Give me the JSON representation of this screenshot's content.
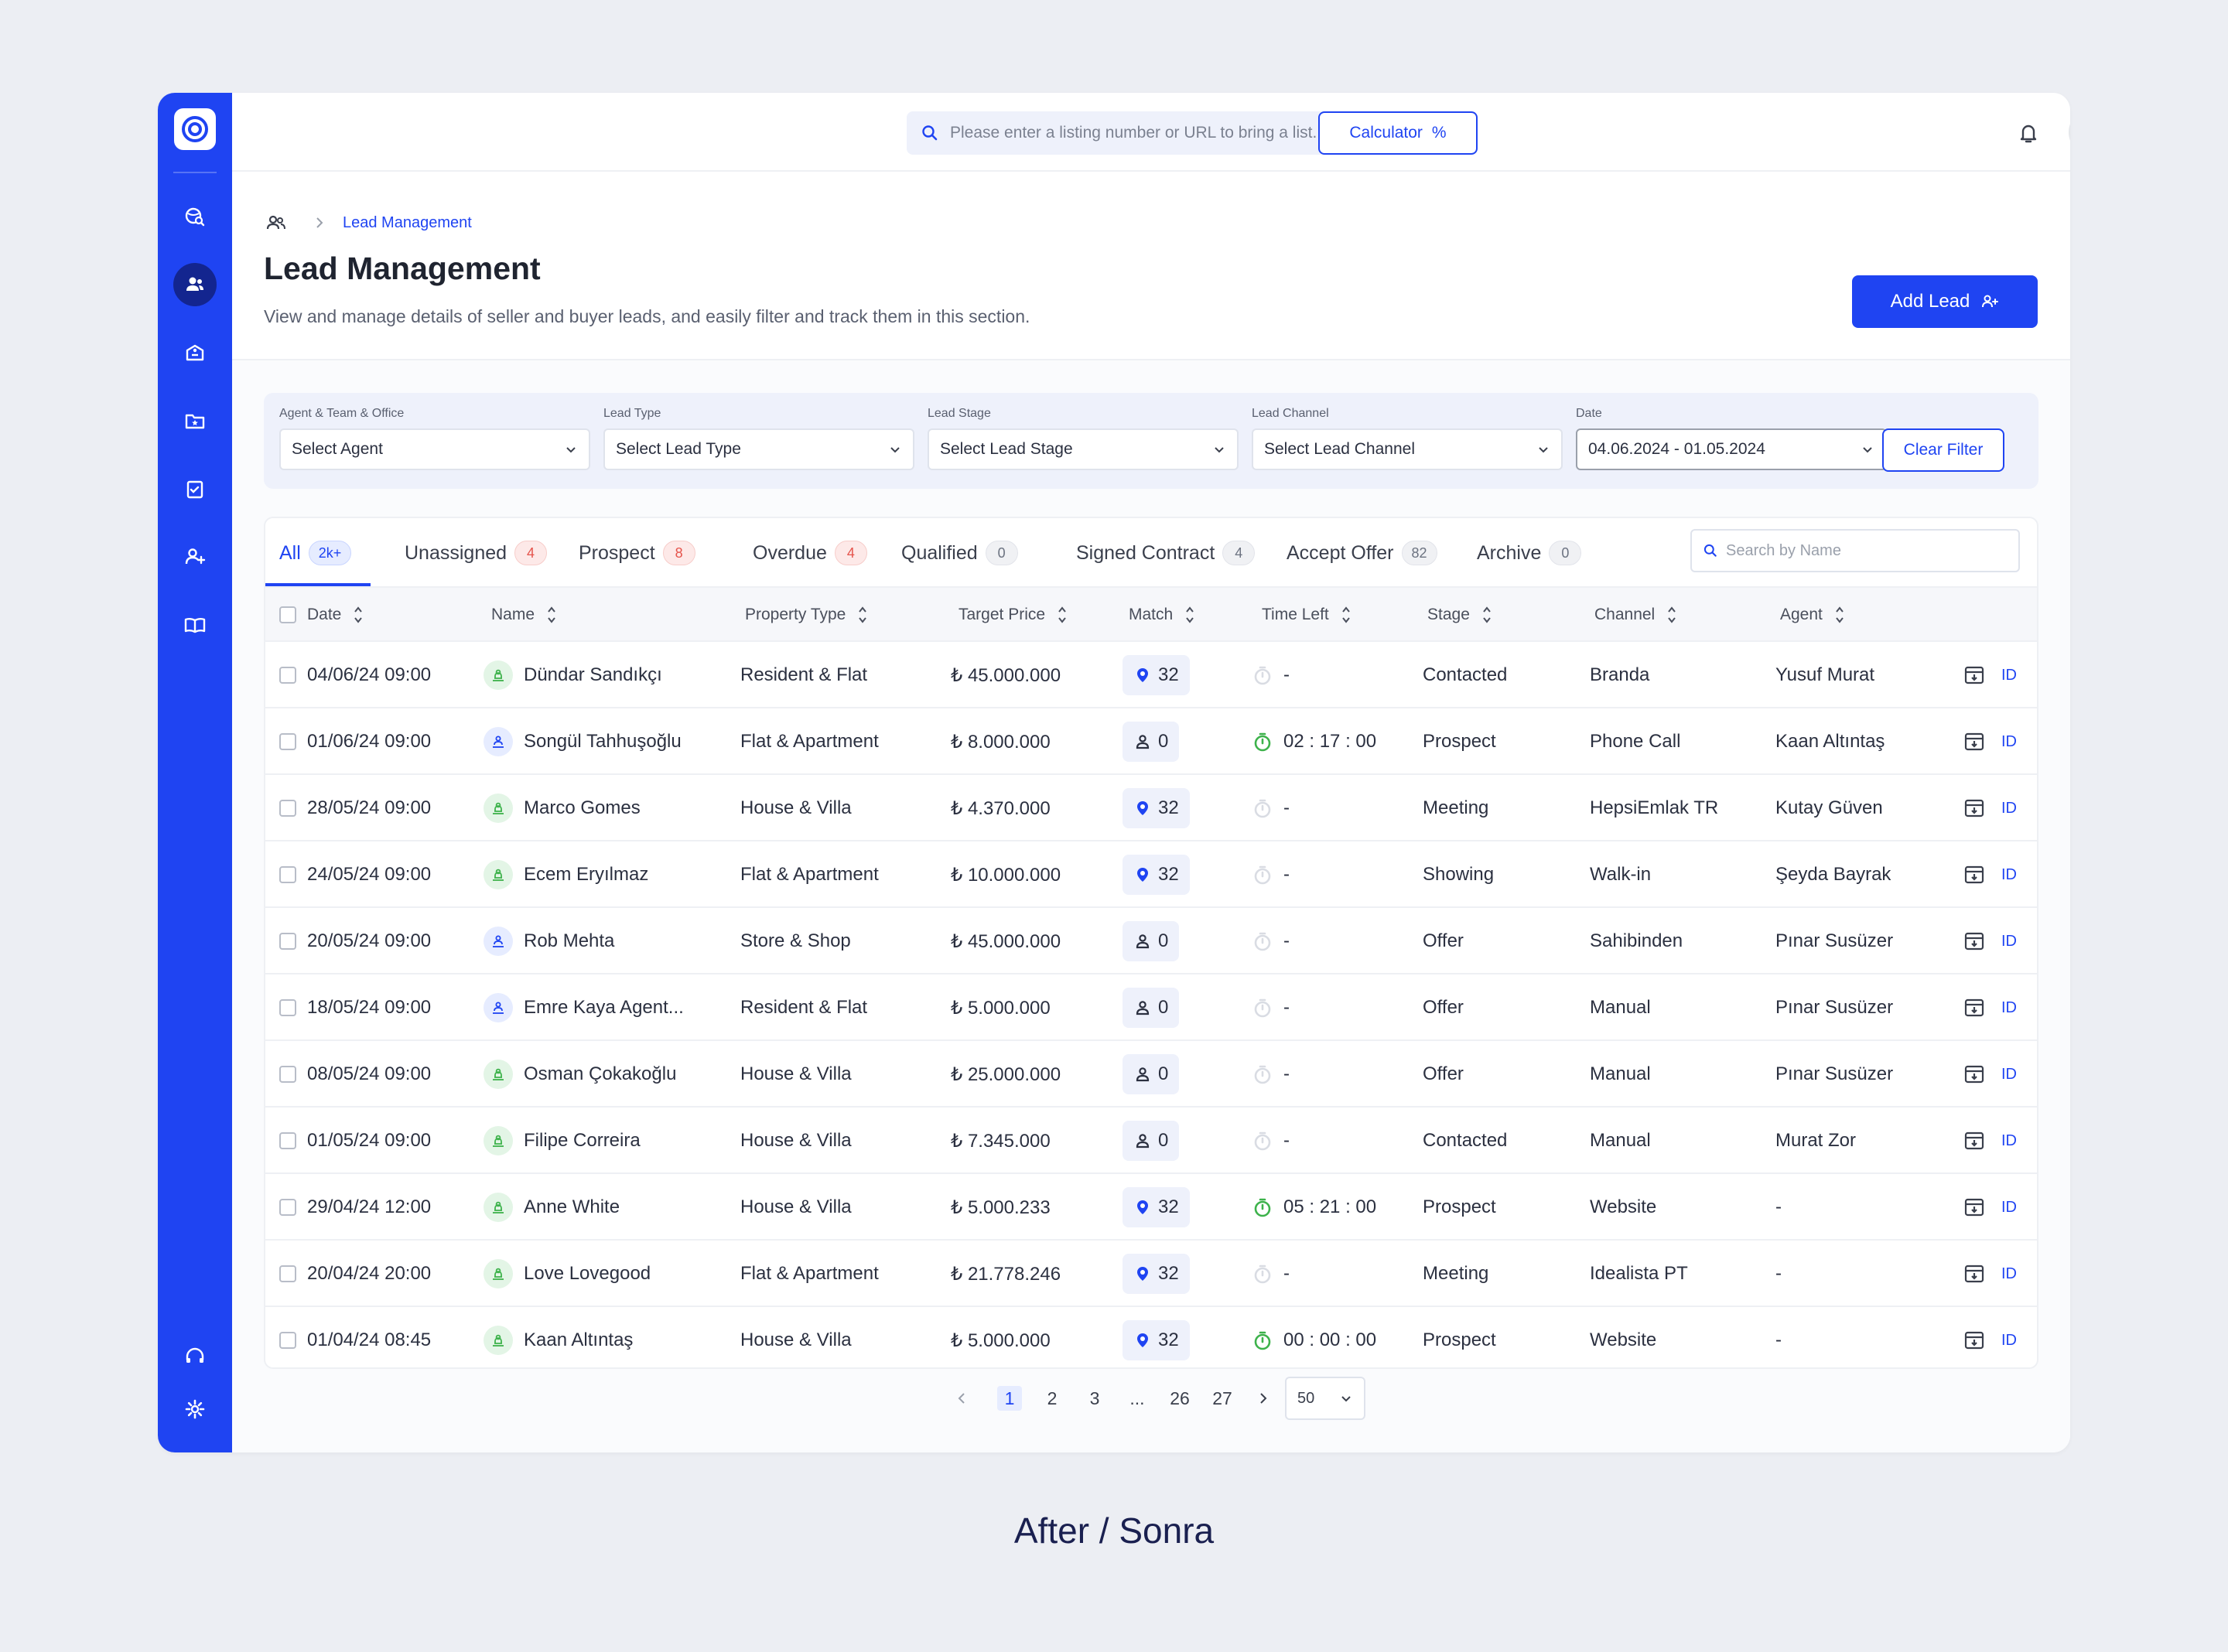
{
  "search": {
    "placeholder": "Please enter a listing number or URL to bring a list..."
  },
  "calculator": {
    "label": "Calculator",
    "icon": "%"
  },
  "breadcrumb": {
    "current": "Lead Management"
  },
  "page": {
    "title": "Lead Management",
    "description": "View and manage details of seller and buyer leads, and easily filter and track them in this section."
  },
  "add_lead": {
    "label": "Add Lead"
  },
  "filters": {
    "agent": {
      "label": "Agent & Team & Office",
      "value": "Select Agent"
    },
    "lead_type": {
      "label": "Lead Type",
      "value": "Select Lead Type"
    },
    "lead_stage": {
      "label": "Lead Stage",
      "value": "Select Lead Stage"
    },
    "lead_channel": {
      "label": "Lead Channel",
      "value": "Select Lead Channel"
    },
    "date": {
      "label": "Date",
      "value": "04.06.2024 - 01.05.2024"
    },
    "clear": "Clear Filter"
  },
  "tabs": [
    {
      "label": "All",
      "count": "2k+",
      "style": "blue"
    },
    {
      "label": "Unassigned",
      "count": "4",
      "style": "red"
    },
    {
      "label": "Prospect",
      "count": "8",
      "style": "red"
    },
    {
      "label": "Overdue",
      "count": "4",
      "style": "red"
    },
    {
      "label": "Qualified",
      "count": "0",
      "style": "gray"
    },
    {
      "label": "Signed Contract",
      "count": "4",
      "style": "gray"
    },
    {
      "label": "Accept Offer",
      "count": "82",
      "style": "gray"
    },
    {
      "label": "Archive",
      "count": "0",
      "style": "gray"
    }
  ],
  "name_search": {
    "placeholder": "Search by Name"
  },
  "columns": {
    "date": "Date",
    "name": "Name",
    "property_type": "Property Type",
    "target_price": "Target Price",
    "match": "Match",
    "time_left": "Time Left",
    "stage": "Stage",
    "channel": "Channel",
    "agent": "Agent"
  },
  "rows": [
    {
      "date": "04/06/24 09:00",
      "name": "Dündar Sandıkçı",
      "kind": "seller",
      "property": "Resident & Flat",
      "price": "₺ 45.000.000",
      "match_icon": "pin",
      "match": "32",
      "timer": "inactive",
      "time_left": "-",
      "stage": "Contacted",
      "channel": "Branda",
      "agent": "Yusuf Murat",
      "id": "ID"
    },
    {
      "date": "01/06/24 09:00",
      "name": "Songül Tahhuşoğlu",
      "kind": "buyer",
      "property": "Flat & Apartment",
      "price": "₺ 8.000.000",
      "match_icon": "person",
      "match": "0",
      "timer": "active",
      "time_left": "02 : 17 : 00",
      "stage": "Prospect",
      "channel": "Phone Call",
      "agent": "Kaan Altıntaş",
      "id": "ID"
    },
    {
      "date": "28/05/24 09:00",
      "name": "Marco Gomes",
      "kind": "seller",
      "property": "House & Villa",
      "price": "₺ 4.370.000",
      "match_icon": "pin",
      "match": "32",
      "timer": "inactive",
      "time_left": "-",
      "stage": "Meeting",
      "channel": "HepsiEmlak TR",
      "agent": "Kutay Güven",
      "id": "ID"
    },
    {
      "date": "24/05/24 09:00",
      "name": "Ecem Eryılmaz",
      "kind": "seller",
      "property": "Flat & Apartment",
      "price": "₺ 10.000.000",
      "match_icon": "pin",
      "match": "32",
      "timer": "inactive",
      "time_left": "-",
      "stage": "Showing",
      "channel": "Walk-in",
      "agent": "Şeyda Bayrak",
      "id": "ID"
    },
    {
      "date": "20/05/24 09:00",
      "name": "Rob Mehta",
      "kind": "buyer",
      "property": "Store & Shop",
      "price": "₺ 45.000.000",
      "match_icon": "person",
      "match": "0",
      "timer": "inactive",
      "time_left": "-",
      "stage": "Offer",
      "channel": "Sahibinden",
      "agent": "Pınar Susüzer",
      "id": "ID"
    },
    {
      "date": "18/05/24 09:00",
      "name": "Emre Kaya Agent...",
      "kind": "buyer",
      "property": "Resident & Flat",
      "price": "₺ 5.000.000",
      "match_icon": "person",
      "match": "0",
      "timer": "inactive",
      "time_left": "-",
      "stage": "Offer",
      "channel": "Manual",
      "agent": "Pınar Susüzer",
      "id": "ID"
    },
    {
      "date": "08/05/24 09:00",
      "name": "Osman Çokakoğlu",
      "kind": "seller",
      "property": "House & Villa",
      "price": "₺ 25.000.000",
      "match_icon": "person",
      "match": "0",
      "timer": "inactive",
      "time_left": "-",
      "stage": "Offer",
      "channel": "Manual",
      "agent": "Pınar Susüzer",
      "id": "ID"
    },
    {
      "date": "01/05/24 09:00",
      "name": "Filipe Correira",
      "kind": "seller",
      "property": "House & Villa",
      "price": "₺ 7.345.000",
      "match_icon": "person",
      "match": "0",
      "timer": "inactive",
      "time_left": "-",
      "stage": "Contacted",
      "channel": "Manual",
      "agent": "Murat Zor",
      "id": "ID"
    },
    {
      "date": "29/04/24 12:00",
      "name": "Anne White",
      "kind": "seller",
      "property": "House & Villa",
      "price": "₺ 5.000.233",
      "match_icon": "pin",
      "match": "32",
      "timer": "active",
      "time_left": "05 : 21 : 00",
      "stage": "Prospect",
      "channel": "Website",
      "agent": "-",
      "id": "ID"
    },
    {
      "date": "20/04/24 20:00",
      "name": "Love Lovegood",
      "kind": "seller",
      "property": "Flat & Apartment",
      "price": "₺ 21.778.246",
      "match_icon": "pin",
      "match": "32",
      "timer": "inactive",
      "time_left": "-",
      "stage": "Meeting",
      "channel": "Idealista PT",
      "agent": "-",
      "id": "ID"
    },
    {
      "date": "01/04/24 08:45",
      "name": "Kaan Altıntaş",
      "kind": "seller",
      "property": "House & Villa",
      "price": "₺ 5.000.000",
      "match_icon": "pin",
      "match": "32",
      "timer": "active",
      "time_left": "00 : 00 : 00",
      "stage": "Prospect",
      "channel": "Website",
      "agent": "-",
      "id": "ID"
    }
  ],
  "pagination": {
    "pages": [
      "1",
      "2",
      "3",
      "...",
      "26",
      "27"
    ],
    "current": "1",
    "per_page": "50"
  },
  "caption": "After / Sonra",
  "colors": {
    "accent": "#1f44f2",
    "sidebar": "#1f44f2",
    "seller_icon_bg": "#e3f5e6",
    "buyer_icon_bg": "#e6ecff",
    "timer_active": "#3db24b"
  }
}
